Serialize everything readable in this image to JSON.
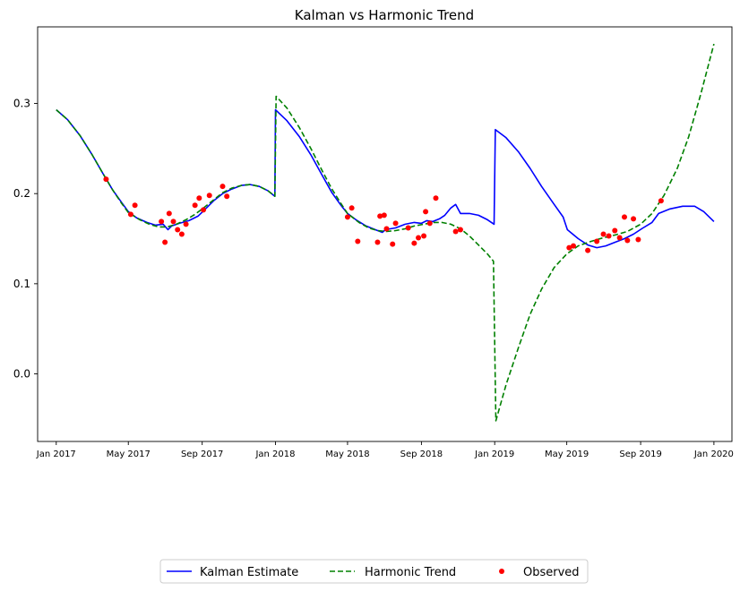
{
  "chart_data": {
    "type": "line",
    "title": "Kalman vs Harmonic Trend",
    "xlabel": "",
    "ylabel": "",
    "xlim": [
      "2016-12-01",
      "2020-01-31"
    ],
    "ylim": [
      -0.075,
      0.385
    ],
    "x_ticks": [
      "2017-01-01",
      "2017-05-01",
      "2017-09-01",
      "2018-01-01",
      "2018-05-01",
      "2018-09-01",
      "2019-01-01",
      "2019-05-01",
      "2019-09-01",
      "2020-01-01"
    ],
    "x_tick_labels": [
      "Jan 2017",
      "May 2017",
      "Sep 2017",
      "Jan 2018",
      "May 2018",
      "Sep 2018",
      "Jan 2019",
      "May 2019",
      "Sep 2019",
      "Jan 2020"
    ],
    "y_ticks": [
      0.0,
      0.1,
      0.2,
      0.3
    ],
    "y_tick_labels": [
      "0.0",
      "0.1",
      "0.2",
      "0.3"
    ],
    "grid": false,
    "legend_position": "bottom-center",
    "series": [
      {
        "name": "Kalman Estimate",
        "style": "solid",
        "color": "#0000ff",
        "points": [
          [
            "2017-01-01",
            0.293
          ],
          [
            "2017-01-20",
            0.282
          ],
          [
            "2017-02-10",
            0.264
          ],
          [
            "2017-03-01",
            0.244
          ],
          [
            "2017-03-20",
            0.222
          ],
          [
            "2017-04-05",
            0.204
          ],
          [
            "2017-04-20",
            0.19
          ],
          [
            "2017-05-01",
            0.18
          ],
          [
            "2017-05-15",
            0.173
          ],
          [
            "2017-06-01",
            0.168
          ],
          [
            "2017-06-15",
            0.165
          ],
          [
            "2017-06-28",
            0.166
          ],
          [
            "2017-07-02",
            0.163
          ],
          [
            "2017-07-06",
            0.16
          ],
          [
            "2017-07-12",
            0.164
          ],
          [
            "2017-07-25",
            0.167
          ],
          [
            "2017-08-10",
            0.17
          ],
          [
            "2017-08-25",
            0.175
          ],
          [
            "2017-09-05",
            0.182
          ],
          [
            "2017-09-20",
            0.192
          ],
          [
            "2017-10-05",
            0.2
          ],
          [
            "2017-10-20",
            0.205
          ],
          [
            "2017-11-05",
            0.209
          ],
          [
            "2017-11-20",
            0.21
          ],
          [
            "2017-12-05",
            0.208
          ],
          [
            "2017-12-20",
            0.203
          ],
          [
            "2017-12-31",
            0.197
          ],
          [
            "2018-01-01",
            0.293
          ],
          [
            "2018-01-20",
            0.281
          ],
          [
            "2018-02-10",
            0.263
          ],
          [
            "2018-03-01",
            0.243
          ],
          [
            "2018-03-20",
            0.22
          ],
          [
            "2018-04-05",
            0.201
          ],
          [
            "2018-04-20",
            0.187
          ],
          [
            "2018-05-01",
            0.178
          ],
          [
            "2018-05-15",
            0.171
          ],
          [
            "2018-06-01",
            0.164
          ],
          [
            "2018-06-20",
            0.159
          ],
          [
            "2018-06-28",
            0.157
          ],
          [
            "2018-07-03",
            0.16
          ],
          [
            "2018-07-20",
            0.162
          ],
          [
            "2018-08-05",
            0.166
          ],
          [
            "2018-08-20",
            0.168
          ],
          [
            "2018-09-01",
            0.167
          ],
          [
            "2018-09-10",
            0.17
          ],
          [
            "2018-09-20",
            0.169
          ],
          [
            "2018-10-01",
            0.172
          ],
          [
            "2018-10-10",
            0.176
          ],
          [
            "2018-10-20",
            0.184
          ],
          [
            "2018-10-28",
            0.188
          ],
          [
            "2018-11-05",
            0.178
          ],
          [
            "2018-11-20",
            0.178
          ],
          [
            "2018-12-05",
            0.176
          ],
          [
            "2018-12-20",
            0.171
          ],
          [
            "2018-12-31",
            0.166
          ],
          [
            "2019-01-02",
            0.271
          ],
          [
            "2019-01-20",
            0.262
          ],
          [
            "2019-02-10",
            0.246
          ],
          [
            "2019-03-01",
            0.228
          ],
          [
            "2019-03-20",
            0.208
          ],
          [
            "2019-04-10",
            0.188
          ],
          [
            "2019-04-25",
            0.174
          ],
          [
            "2019-05-02",
            0.16
          ],
          [
            "2019-05-20",
            0.15
          ],
          [
            "2019-06-05",
            0.143
          ],
          [
            "2019-06-20",
            0.14
          ],
          [
            "2019-07-05",
            0.142
          ],
          [
            "2019-07-20",
            0.146
          ],
          [
            "2019-08-05",
            0.15
          ],
          [
            "2019-08-20",
            0.155
          ],
          [
            "2019-09-05",
            0.162
          ],
          [
            "2019-09-20",
            0.168
          ],
          [
            "2019-10-01",
            0.178
          ],
          [
            "2019-10-20",
            0.183
          ],
          [
            "2019-11-10",
            0.186
          ],
          [
            "2019-11-30",
            0.186
          ],
          [
            "2019-12-15",
            0.18
          ],
          [
            "2020-01-01",
            0.169
          ]
        ]
      },
      {
        "name": "Harmonic Trend",
        "style": "dashed",
        "color": "#008000",
        "points": [
          [
            "2017-01-01",
            0.293
          ],
          [
            "2017-01-20",
            0.282
          ],
          [
            "2017-02-10",
            0.264
          ],
          [
            "2017-03-01",
            0.244
          ],
          [
            "2017-03-20",
            0.222
          ],
          [
            "2017-04-05",
            0.204
          ],
          [
            "2017-04-20",
            0.189
          ],
          [
            "2017-05-01",
            0.179
          ],
          [
            "2017-05-20",
            0.171
          ],
          [
            "2017-06-05",
            0.166
          ],
          [
            "2017-06-20",
            0.163
          ],
          [
            "2017-07-05",
            0.163
          ],
          [
            "2017-07-20",
            0.166
          ],
          [
            "2017-08-05",
            0.171
          ],
          [
            "2017-08-20",
            0.177
          ],
          [
            "2017-09-05",
            0.185
          ],
          [
            "2017-09-20",
            0.193
          ],
          [
            "2017-10-05",
            0.201
          ],
          [
            "2017-10-20",
            0.206
          ],
          [
            "2017-11-05",
            0.209
          ],
          [
            "2017-11-20",
            0.21
          ],
          [
            "2017-12-05",
            0.208
          ],
          [
            "2017-12-20",
            0.203
          ],
          [
            "2017-12-31",
            0.197
          ],
          [
            "2018-01-02",
            0.308
          ],
          [
            "2018-01-20",
            0.295
          ],
          [
            "2018-02-10",
            0.273
          ],
          [
            "2018-03-01",
            0.25
          ],
          [
            "2018-03-20",
            0.225
          ],
          [
            "2018-04-05",
            0.205
          ],
          [
            "2018-04-20",
            0.189
          ],
          [
            "2018-05-01",
            0.178
          ],
          [
            "2018-05-20",
            0.168
          ],
          [
            "2018-06-05",
            0.162
          ],
          [
            "2018-06-20",
            0.159
          ],
          [
            "2018-07-05",
            0.158
          ],
          [
            "2018-07-20",
            0.159
          ],
          [
            "2018-08-05",
            0.161
          ],
          [
            "2018-08-20",
            0.164
          ],
          [
            "2018-09-05",
            0.166
          ],
          [
            "2018-09-20",
            0.168
          ],
          [
            "2018-10-05",
            0.168
          ],
          [
            "2018-10-20",
            0.166
          ],
          [
            "2018-11-05",
            0.161
          ],
          [
            "2018-11-20",
            0.153
          ],
          [
            "2018-12-05",
            0.143
          ],
          [
            "2018-12-20",
            0.133
          ],
          [
            "2018-12-30",
            0.125
          ],
          [
            "2019-01-03",
            -0.052
          ],
          [
            "2019-01-20",
            -0.012
          ],
          [
            "2019-02-10",
            0.03
          ],
          [
            "2019-03-01",
            0.066
          ],
          [
            "2019-03-20",
            0.094
          ],
          [
            "2019-04-10",
            0.118
          ],
          [
            "2019-05-01",
            0.133
          ],
          [
            "2019-05-20",
            0.142
          ],
          [
            "2019-06-10",
            0.147
          ],
          [
            "2019-07-01",
            0.151
          ],
          [
            "2019-07-20",
            0.154
          ],
          [
            "2019-08-10",
            0.158
          ],
          [
            "2019-09-01",
            0.166
          ],
          [
            "2019-09-20",
            0.178
          ],
          [
            "2019-10-10",
            0.198
          ],
          [
            "2019-11-01",
            0.228
          ],
          [
            "2019-11-20",
            0.263
          ],
          [
            "2019-12-10",
            0.31
          ],
          [
            "2020-01-01",
            0.366
          ]
        ]
      },
      {
        "name": "Observed",
        "style": "scatter",
        "color": "#ff0000",
        "points": [
          [
            "2017-03-25",
            0.216
          ],
          [
            "2017-05-05",
            0.177
          ],
          [
            "2017-05-12",
            0.187
          ],
          [
            "2017-06-25",
            0.169
          ],
          [
            "2017-07-01",
            0.146
          ],
          [
            "2017-07-08",
            0.178
          ],
          [
            "2017-07-15",
            0.169
          ],
          [
            "2017-07-22",
            0.16
          ],
          [
            "2017-07-29",
            0.155
          ],
          [
            "2017-08-05",
            0.166
          ],
          [
            "2017-08-20",
            0.187
          ],
          [
            "2017-08-27",
            0.195
          ],
          [
            "2017-09-03",
            0.182
          ],
          [
            "2017-09-13",
            0.198
          ],
          [
            "2017-10-05",
            0.208
          ],
          [
            "2017-10-12",
            0.197
          ],
          [
            "2018-05-01",
            0.174
          ],
          [
            "2018-05-08",
            0.184
          ],
          [
            "2018-05-18",
            0.147
          ],
          [
            "2018-06-20",
            0.146
          ],
          [
            "2018-06-24",
            0.175
          ],
          [
            "2018-07-01",
            0.176
          ],
          [
            "2018-07-05",
            0.161
          ],
          [
            "2018-07-15",
            0.144
          ],
          [
            "2018-07-20",
            0.167
          ],
          [
            "2018-08-10",
            0.162
          ],
          [
            "2018-08-20",
            0.145
          ],
          [
            "2018-08-27",
            0.151
          ],
          [
            "2018-09-05",
            0.153
          ],
          [
            "2018-09-08",
            0.18
          ],
          [
            "2018-09-15",
            0.167
          ],
          [
            "2018-09-25",
            0.195
          ],
          [
            "2018-10-28",
            0.158
          ],
          [
            "2018-11-05",
            0.16
          ],
          [
            "2019-05-05",
            0.14
          ],
          [
            "2019-05-12",
            0.142
          ],
          [
            "2019-06-05",
            0.137
          ],
          [
            "2019-06-20",
            0.147
          ],
          [
            "2019-07-01",
            0.155
          ],
          [
            "2019-07-10",
            0.153
          ],
          [
            "2019-07-20",
            0.159
          ],
          [
            "2019-07-28",
            0.151
          ],
          [
            "2019-08-05",
            0.174
          ],
          [
            "2019-08-10",
            0.148
          ],
          [
            "2019-08-20",
            0.172
          ],
          [
            "2019-08-28",
            0.149
          ],
          [
            "2019-10-05",
            0.192
          ]
        ]
      }
    ]
  }
}
